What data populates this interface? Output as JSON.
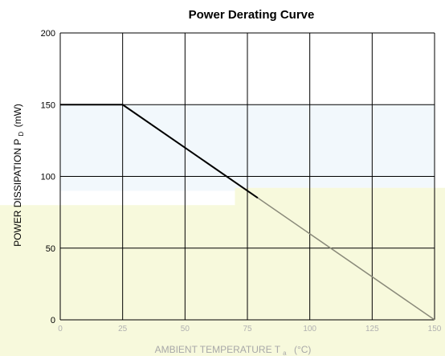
{
  "chart_data": {
    "type": "line",
    "title": "Power Derating Curve",
    "xlabel": "AMBIENT TEMPERATURE  T",
    "xlabel_sub": "a",
    "xlabel_unit": "(°C)",
    "ylabel": "POWER DISSIPATION  P",
    "ylabel_sub": "D",
    "ylabel_unit": "(mW)",
    "xlim": [
      0,
      150
    ],
    "ylim": [
      0,
      200
    ],
    "xticks": [
      "0",
      "25",
      "50",
      "75",
      "100",
      "125",
      "150"
    ],
    "yticks": [
      "0",
      "50",
      "100",
      "150",
      "200"
    ],
    "grid": true,
    "series": [
      {
        "x": [
          0,
          25,
          150
        ],
        "y": [
          150,
          150,
          0
        ]
      }
    ],
    "colors": {
      "line": "#000000",
      "grid": "#000000",
      "shade_light": "#f2f8fc",
      "shade_yellow": "#f7f9dc"
    }
  }
}
